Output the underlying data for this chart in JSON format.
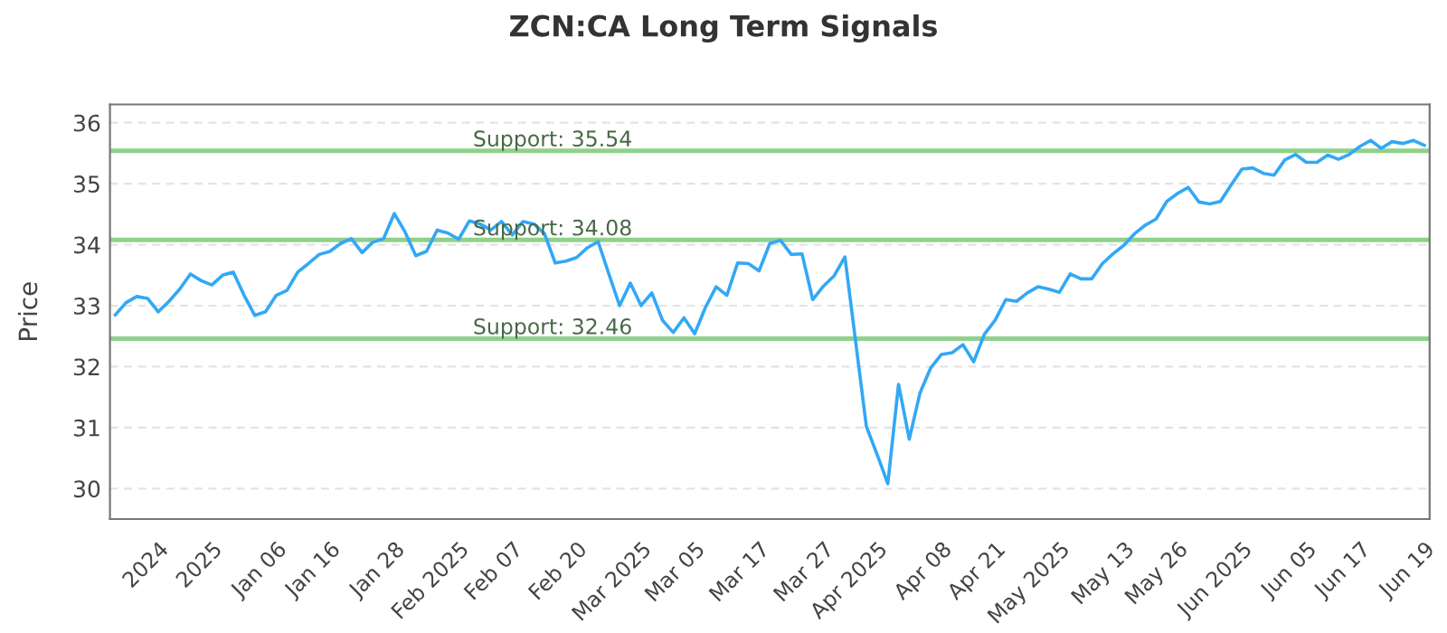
{
  "chart_data": {
    "type": "line",
    "title": "ZCN:CA Long Term Signals",
    "ylabel": "Price",
    "categories": [
      null,
      null,
      null,
      null,
      "2024",
      null,
      null,
      null,
      null,
      "2025",
      null,
      null,
      null,
      null,
      null,
      "Jan 06",
      null,
      null,
      null,
      null,
      "Jan 16",
      null,
      null,
      null,
      null,
      null,
      "Jan 28",
      null,
      null,
      null,
      null,
      null,
      "Feb 2025",
      null,
      null,
      null,
      null,
      "Feb 07",
      null,
      null,
      null,
      null,
      null,
      "Feb 20",
      null,
      null,
      null,
      null,
      null,
      "Mar 2025",
      null,
      null,
      null,
      null,
      "Mar 05",
      null,
      null,
      null,
      null,
      null,
      "Mar 17",
      null,
      null,
      null,
      null,
      null,
      "Mar 27",
      null,
      null,
      null,
      null,
      "Apr 2025",
      null,
      null,
      null,
      null,
      null,
      "Apr 08",
      null,
      null,
      null,
      null,
      "Apr 21",
      null,
      null,
      null,
      null,
      null,
      "May 2025",
      null,
      null,
      null,
      null,
      null,
      "May 13",
      null,
      null,
      null,
      null,
      "May 26",
      null,
      null,
      null,
      null,
      null,
      "Jun 2025",
      null,
      null,
      null,
      null,
      null,
      "Jun 05",
      null,
      null,
      null,
      null,
      "Jun 17",
      null,
      null,
      null,
      null,
      null,
      "Jun 19"
    ],
    "series": [
      {
        "color": "#33a8f5",
        "values": [
          32.85,
          33.05,
          33.15,
          33.12,
          32.9,
          33.07,
          33.27,
          33.52,
          33.41,
          33.34,
          33.5,
          33.55,
          33.17,
          32.84,
          32.9,
          33.17,
          33.25,
          33.55,
          33.69,
          33.84,
          33.89,
          34.02,
          34.1,
          33.87,
          34.04,
          34.1,
          34.51,
          34.21,
          33.82,
          33.89,
          34.24,
          34.19,
          34.09,
          34.39,
          34.34,
          34.24,
          34.38,
          34.16,
          34.38,
          34.34,
          34.18,
          33.7,
          33.73,
          33.79,
          33.95,
          34.05,
          33.52,
          33.0,
          33.37,
          33.0,
          33.21,
          32.76,
          32.56,
          32.8,
          32.54,
          32.97,
          33.31,
          33.17,
          33.7,
          33.69,
          33.57,
          34.02,
          34.07,
          33.84,
          33.85,
          33.1,
          33.32,
          33.49,
          33.8,
          32.41,
          31.02,
          30.56,
          30.08,
          31.71,
          30.81,
          31.57,
          31.98,
          32.2,
          32.23,
          32.36,
          32.08,
          32.53,
          32.76,
          33.1,
          33.07,
          33.21,
          33.31,
          33.27,
          33.22,
          33.52,
          33.44,
          33.44,
          33.69,
          33.85,
          33.99,
          34.18,
          34.32,
          34.42,
          34.71,
          34.84,
          34.94,
          34.7,
          34.67,
          34.71,
          34.98,
          35.24,
          35.26,
          35.17,
          35.14,
          35.39,
          35.48,
          35.35,
          35.35,
          35.47,
          35.4,
          35.48,
          35.61,
          35.71,
          35.58,
          35.69,
          35.66,
          35.71,
          35.63
        ]
      }
    ],
    "ylim": [
      29.5,
      36.3
    ],
    "yticks": [
      30,
      31,
      32,
      33,
      34,
      35,
      36
    ],
    "grid": "y",
    "marker": "none",
    "line_style": "solid",
    "ref_lines": [
      {
        "axis": "y",
        "value": 35.54,
        "label": "Support: 35.54",
        "color": "#8fd18a"
      },
      {
        "axis": "y",
        "value": 34.08,
        "label": "Support: 34.08",
        "color": "#8fd18a"
      },
      {
        "axis": "y",
        "value": 32.46,
        "label": "Support: 32.46",
        "color": "#8fd18a"
      }
    ]
  }
}
